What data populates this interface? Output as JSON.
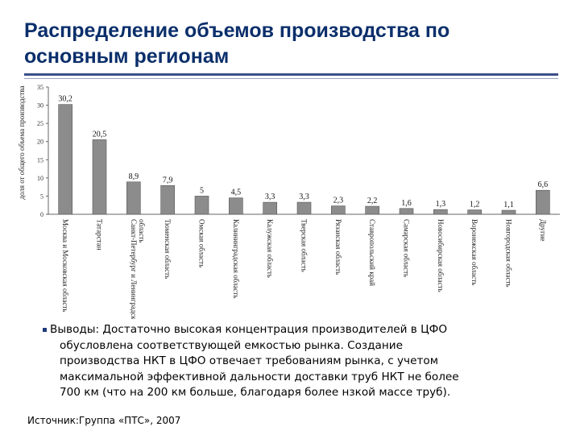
{
  "slide": {
    "title_lines": [
      "Распределение объемов производства по",
      "основным регионам"
    ],
    "conclusion_lines": [
      "Выводы: Достаточно высокая концентрация производителей в ЦФО",
      "обусловлена соответствующей емкостью рынка. Создание",
      "производства НКТ в ЦФО отвечает требованиям рынка, с учетом",
      "максимальной эффективной дальности доставки труб НКТ не более",
      "700 км (что на 200 км больше, благодаря более нзкой массе труб)."
    ],
    "source": "Источник:Группа «ПТС», 2007"
  },
  "chart_data": {
    "type": "bar",
    "ylabel": "доля от общего объема производства",
    "ylim": [
      0,
      35
    ],
    "yticks": [
      0,
      5,
      10,
      15,
      20,
      25,
      30,
      35
    ],
    "grid": false,
    "bar_color": "#8c8c8c",
    "categories": [
      [
        "Москва и Московская область"
      ],
      [
        "Татарстан"
      ],
      [
        "Санкт-Петербург и Ленинградская",
        "область"
      ],
      [
        "Тюменская область"
      ],
      [
        "Омская область"
      ],
      [
        "Калининградская область"
      ],
      [
        "Калужская область"
      ],
      [
        "Тверская область"
      ],
      [
        "Рязанская область"
      ],
      [
        "Ставропольский край"
      ],
      [
        "Самарская область"
      ],
      [
        "Новосибирская область"
      ],
      [
        "Воронежская область"
      ],
      [
        "Новгородская область"
      ],
      [
        "Другие"
      ]
    ],
    "values": [
      30.2,
      20.5,
      8.9,
      7.9,
      5,
      4.5,
      3.3,
      3.3,
      2.3,
      2.2,
      1.6,
      1.3,
      1.2,
      1.1,
      6.6
    ],
    "value_labels": [
      "30,2",
      "20,5",
      "8,9",
      "7,9",
      "5",
      "4,5",
      "3,3",
      "3,3",
      "2,3",
      "2,2",
      "1,6",
      "1,3",
      "1,2",
      "1,1",
      "6,6"
    ]
  }
}
